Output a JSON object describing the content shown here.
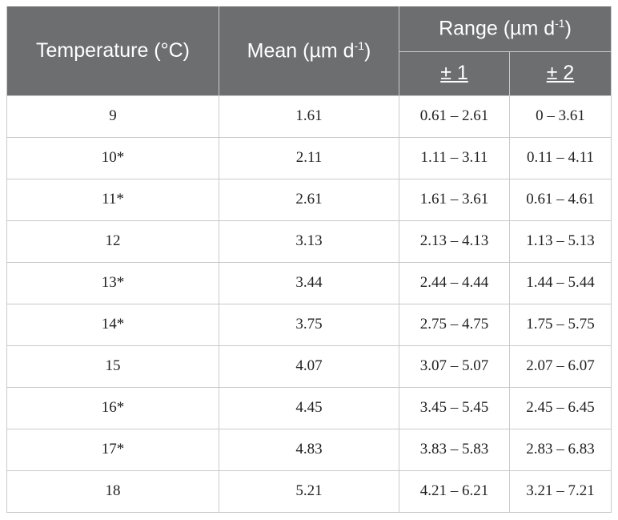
{
  "table": {
    "header": {
      "temperature": "Temperature (°C)",
      "mean": {
        "text": "Mean (µm d",
        "sup": "-1",
        "close": ")"
      },
      "range": {
        "text": "Range (µm d",
        "sup": "-1",
        "close": ")"
      },
      "sub": [
        "± 1",
        "± 2"
      ]
    },
    "rows": [
      [
        "9",
        "1.61",
        "0.61 – 2.61",
        "0 – 3.61"
      ],
      [
        "10*",
        "2.11",
        "1.11 – 3.11",
        "0.11 – 4.11"
      ],
      [
        "11*",
        "2.61",
        "1.61 – 3.61",
        "0.61 – 4.61"
      ],
      [
        "12",
        "3.13",
        "2.13 – 4.13",
        "1.13 – 5.13"
      ],
      [
        "13*",
        "3.44",
        "2.44 – 4.44",
        "1.44 – 5.44"
      ],
      [
        "14*",
        "3.75",
        "2.75 – 4.75",
        "1.75 – 5.75"
      ],
      [
        "15",
        "4.07",
        "3.07 – 5.07",
        "2.07 – 6.07"
      ],
      [
        "16*",
        "4.45",
        "3.45 – 5.45",
        "2.45 – 6.45"
      ],
      [
        "17*",
        "4.83",
        "3.83 – 5.83",
        "2.83 – 6.83"
      ],
      [
        "18",
        "5.21",
        "4.21 – 6.21",
        "3.21 – 7.21"
      ]
    ]
  }
}
